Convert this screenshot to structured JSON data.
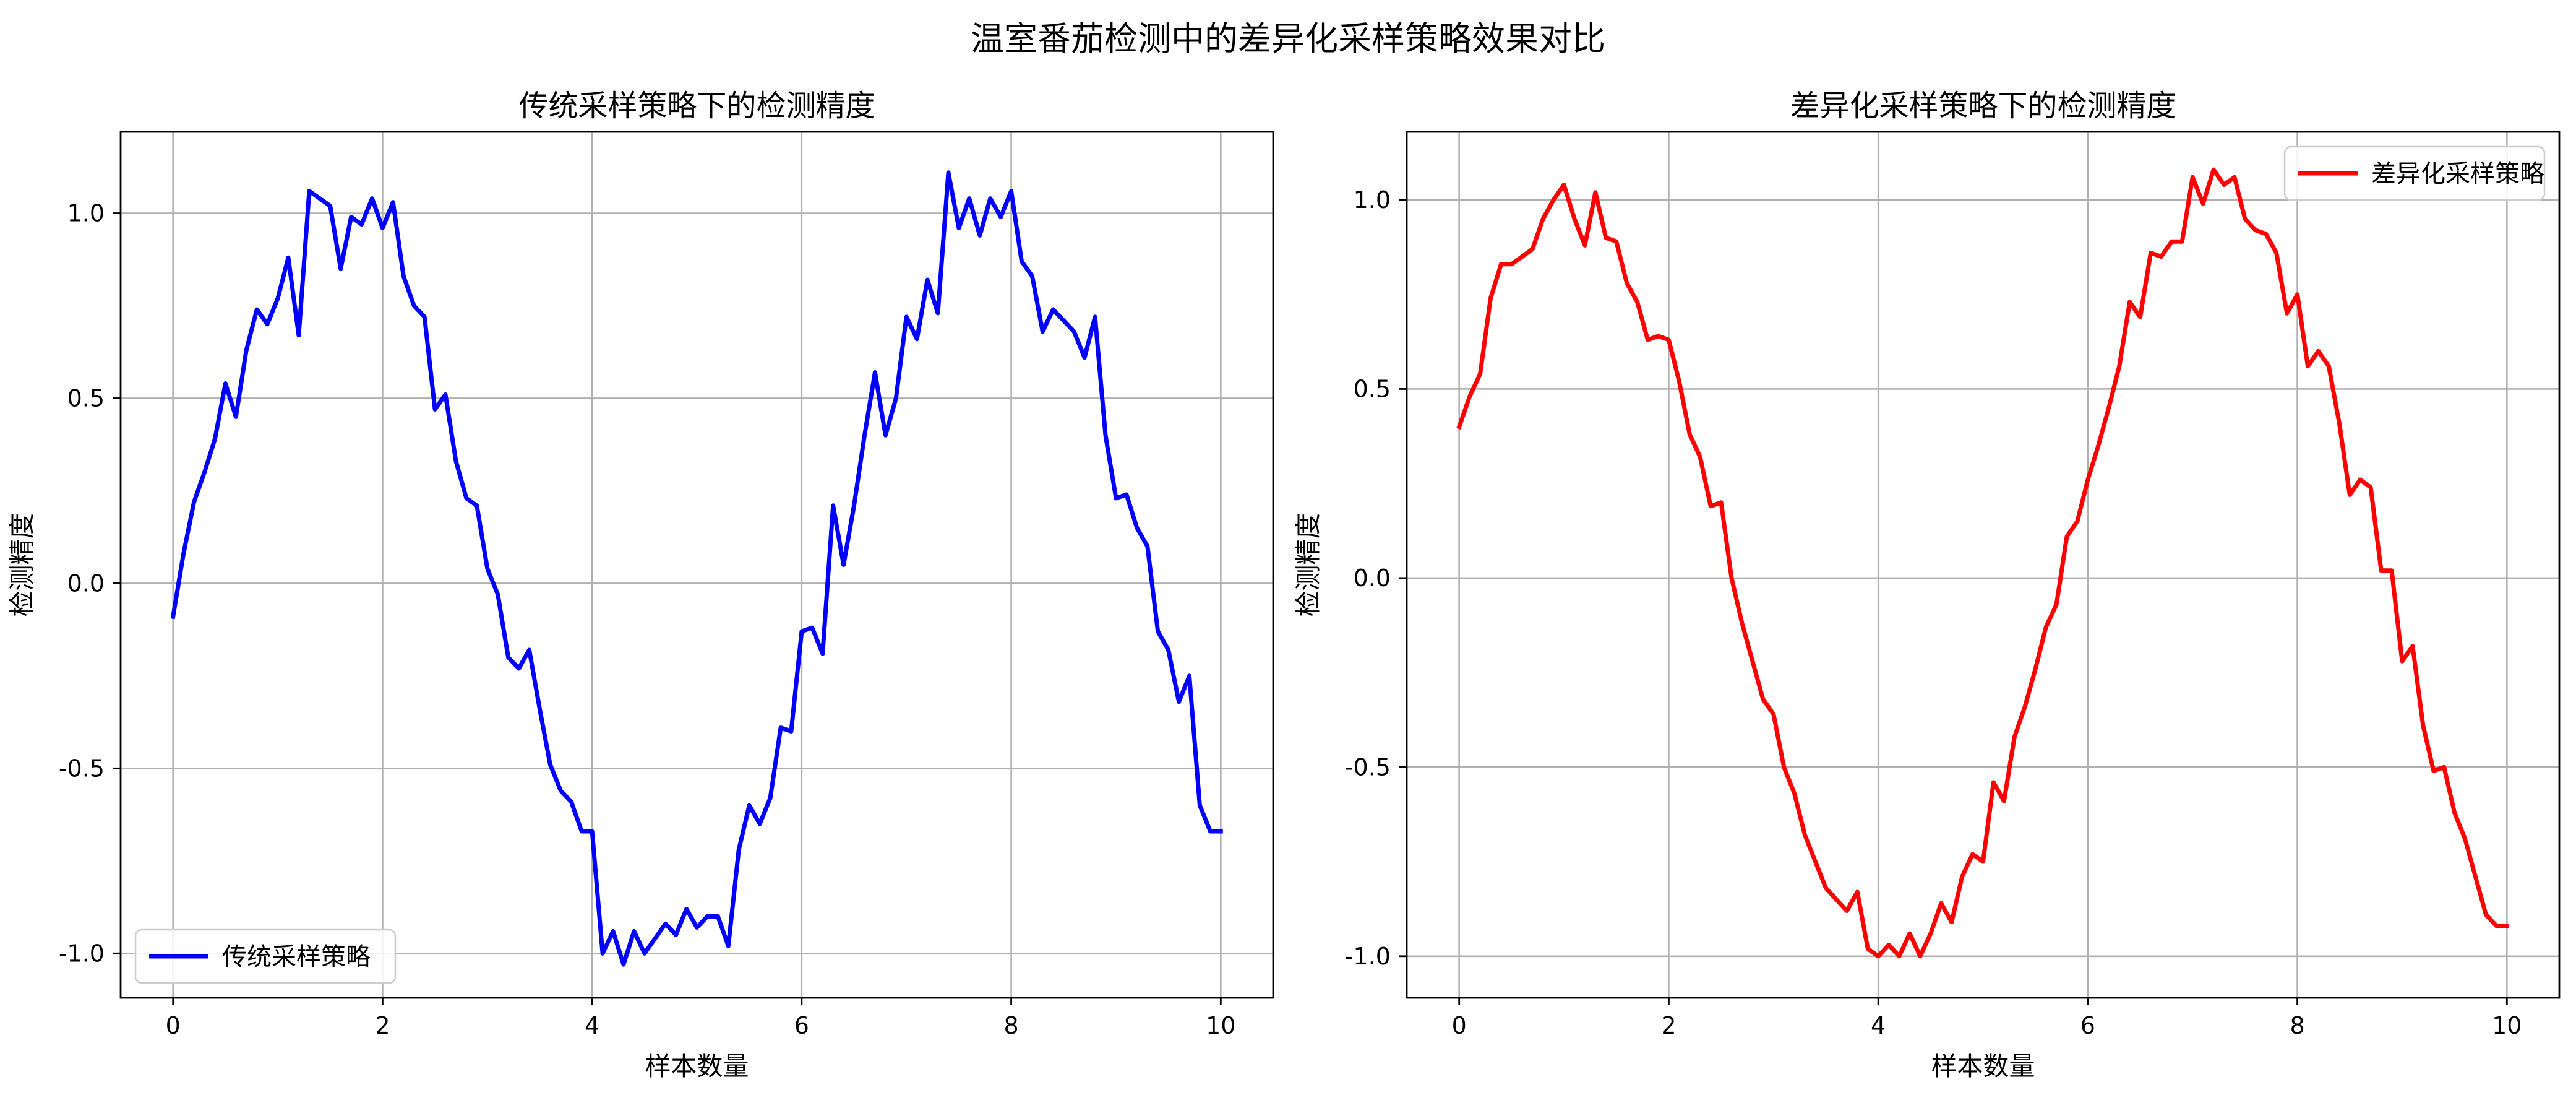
{
  "suptitle": "温室番茄检测中的差异化采样策略效果对比",
  "colors": {
    "left_series": "#0000ff",
    "right_series": "#ff0000",
    "grid": "#b0b0b0",
    "axes": "#000000"
  },
  "chart_data": [
    {
      "type": "line",
      "title": "传统采样策略下的检测精度",
      "xlabel": "样本数量",
      "ylabel": "检测精度",
      "xlim": [
        -0.5,
        10.5
      ],
      "ylim": [
        -1.12,
        1.22
      ],
      "xticks": [
        0,
        2,
        4,
        6,
        8,
        10
      ],
      "yticks": [
        -1.0,
        -0.5,
        0.0,
        0.5,
        1.0
      ],
      "xtick_labels": [
        "0",
        "2",
        "4",
        "6",
        "8",
        "10"
      ],
      "ytick_labels": [
        "-1.0",
        "-0.5",
        "0.0",
        "0.5",
        "1.0"
      ],
      "grid": true,
      "legend_position": "lower-left",
      "series": [
        {
          "name": "传统采样策略",
          "color": "#0000ff",
          "x": [
            0.0,
            0.1,
            0.2,
            0.3,
            0.4,
            0.5,
            0.6,
            0.7,
            0.8,
            0.9,
            1.0,
            1.1,
            1.2,
            1.3,
            1.4,
            1.5,
            1.6,
            1.7,
            1.8,
            1.9,
            2.0,
            2.1,
            2.2,
            2.3,
            2.4,
            2.5,
            2.6,
            2.7,
            2.8,
            2.9,
            3.0,
            3.1,
            3.2,
            3.3,
            3.4,
            3.5,
            3.6,
            3.7,
            3.8,
            3.9,
            4.0,
            4.1,
            4.2,
            4.3,
            4.4,
            4.5,
            4.6,
            4.7,
            4.8,
            4.9,
            5.0,
            5.1,
            5.2,
            5.3,
            5.4,
            5.5,
            5.6,
            5.7,
            5.8,
            5.9,
            6.0,
            6.1,
            6.2,
            6.3,
            6.4,
            6.5,
            6.6,
            6.7,
            6.8,
            6.9,
            7.0,
            7.1,
            7.2,
            7.3,
            7.4,
            7.5,
            7.6,
            7.7,
            7.8,
            7.9,
            8.0,
            8.1,
            8.2,
            8.3,
            8.4,
            8.5,
            8.6,
            8.7,
            8.8,
            8.9,
            9.0,
            9.1,
            9.2,
            9.3,
            9.4,
            9.5,
            9.6,
            9.7,
            9.8,
            9.9,
            10.0
          ],
          "y": [
            -0.09,
            0.08,
            0.22,
            0.3,
            0.39,
            0.54,
            0.45,
            0.63,
            0.74,
            0.7,
            0.77,
            0.88,
            0.67,
            1.06,
            1.04,
            1.02,
            0.85,
            0.99,
            0.97,
            1.04,
            0.96,
            1.03,
            0.83,
            0.75,
            0.72,
            0.47,
            0.51,
            0.33,
            0.23,
            0.21,
            0.04,
            -0.03,
            -0.2,
            -0.23,
            -0.18,
            -0.34,
            -0.49,
            -0.56,
            -0.59,
            -0.67,
            -0.67,
            -1.0,
            -0.94,
            -1.03,
            -0.94,
            -1.0,
            -0.96,
            -0.92,
            -0.95,
            -0.88,
            -0.93,
            -0.9,
            -0.9,
            -0.98,
            -0.72,
            -0.6,
            -0.65,
            -0.58,
            -0.39,
            -0.4,
            -0.13,
            -0.12,
            -0.19,
            0.21,
            0.05,
            0.21,
            0.4,
            0.57,
            0.4,
            0.5,
            0.72,
            0.66,
            0.82,
            0.73,
            1.11,
            0.96,
            1.04,
            0.94,
            1.04,
            0.99,
            1.06,
            0.87,
            0.83,
            0.68,
            0.74,
            0.71,
            0.68,
            0.61,
            0.72,
            0.4,
            0.23,
            0.24,
            0.15,
            0.1,
            -0.13,
            -0.18,
            -0.32,
            -0.25,
            -0.6,
            -0.67,
            -0.67
          ]
        }
      ]
    },
    {
      "type": "line",
      "title": "差异化采样策略下的检测精度",
      "xlabel": "样本数量",
      "ylabel": "检测精度",
      "xlim": [
        -0.5,
        10.5
      ],
      "ylim": [
        -1.11,
        1.18
      ],
      "xticks": [
        0,
        2,
        4,
        6,
        8,
        10
      ],
      "yticks": [
        -1.0,
        -0.5,
        0.0,
        0.5,
        1.0
      ],
      "xtick_labels": [
        "0",
        "2",
        "4",
        "6",
        "8",
        "10"
      ],
      "ytick_labels": [
        "-1.0",
        "-0.5",
        "0.0",
        "0.5",
        "1.0"
      ],
      "grid": true,
      "legend_position": "upper-right",
      "series": [
        {
          "name": "差异化采样策略",
          "color": "#ff0000",
          "x": [
            0.0,
            0.1,
            0.2,
            0.3,
            0.4,
            0.5,
            0.6,
            0.7,
            0.8,
            0.9,
            1.0,
            1.1,
            1.2,
            1.3,
            1.4,
            1.5,
            1.6,
            1.7,
            1.8,
            1.9,
            2.0,
            2.1,
            2.2,
            2.3,
            2.4,
            2.5,
            2.6,
            2.7,
            2.8,
            2.9,
            3.0,
            3.1,
            3.2,
            3.3,
            3.4,
            3.5,
            3.6,
            3.7,
            3.8,
            3.9,
            4.0,
            4.1,
            4.2,
            4.3,
            4.4,
            4.5,
            4.6,
            4.7,
            4.8,
            4.9,
            5.0,
            5.1,
            5.2,
            5.3,
            5.4,
            5.5,
            5.6,
            5.7,
            5.8,
            5.9,
            6.0,
            6.1,
            6.2,
            6.3,
            6.4,
            6.5,
            6.6,
            6.7,
            6.8,
            6.9,
            7.0,
            7.1,
            7.2,
            7.3,
            7.4,
            7.5,
            7.6,
            7.7,
            7.8,
            7.9,
            8.0,
            8.1,
            8.2,
            8.3,
            8.4,
            8.5,
            8.6,
            8.7,
            8.8,
            8.9,
            9.0,
            9.1,
            9.2,
            9.3,
            9.4,
            9.5,
            9.6,
            9.7,
            9.8,
            9.9,
            10.0
          ],
          "y": [
            0.4,
            0.48,
            0.54,
            0.74,
            0.83,
            0.83,
            0.85,
            0.87,
            0.95,
            1.0,
            1.04,
            0.95,
            0.88,
            1.02,
            0.9,
            0.89,
            0.78,
            0.73,
            0.63,
            0.64,
            0.63,
            0.52,
            0.38,
            0.32,
            0.19,
            0.2,
            0.0,
            -0.12,
            -0.22,
            -0.32,
            -0.36,
            -0.5,
            -0.57,
            -0.68,
            -0.75,
            -0.82,
            -0.85,
            -0.88,
            -0.83,
            -0.98,
            -1.0,
            -0.97,
            -1.0,
            -0.94,
            -1.0,
            -0.94,
            -0.86,
            -0.91,
            -0.79,
            -0.73,
            -0.75,
            -0.54,
            -0.59,
            -0.42,
            -0.34,
            -0.24,
            -0.13,
            -0.07,
            0.11,
            0.15,
            0.26,
            0.35,
            0.45,
            0.56,
            0.73,
            0.69,
            0.86,
            0.85,
            0.89,
            0.89,
            1.06,
            0.99,
            1.08,
            1.04,
            1.06,
            0.95,
            0.92,
            0.91,
            0.86,
            0.7,
            0.75,
            0.56,
            0.6,
            0.56,
            0.41,
            0.22,
            0.26,
            0.24,
            0.02,
            0.02,
            -0.22,
            -0.18,
            -0.39,
            -0.51,
            -0.5,
            -0.62,
            -0.69,
            -0.79,
            -0.89,
            -0.92,
            -0.92
          ]
        }
      ]
    }
  ]
}
